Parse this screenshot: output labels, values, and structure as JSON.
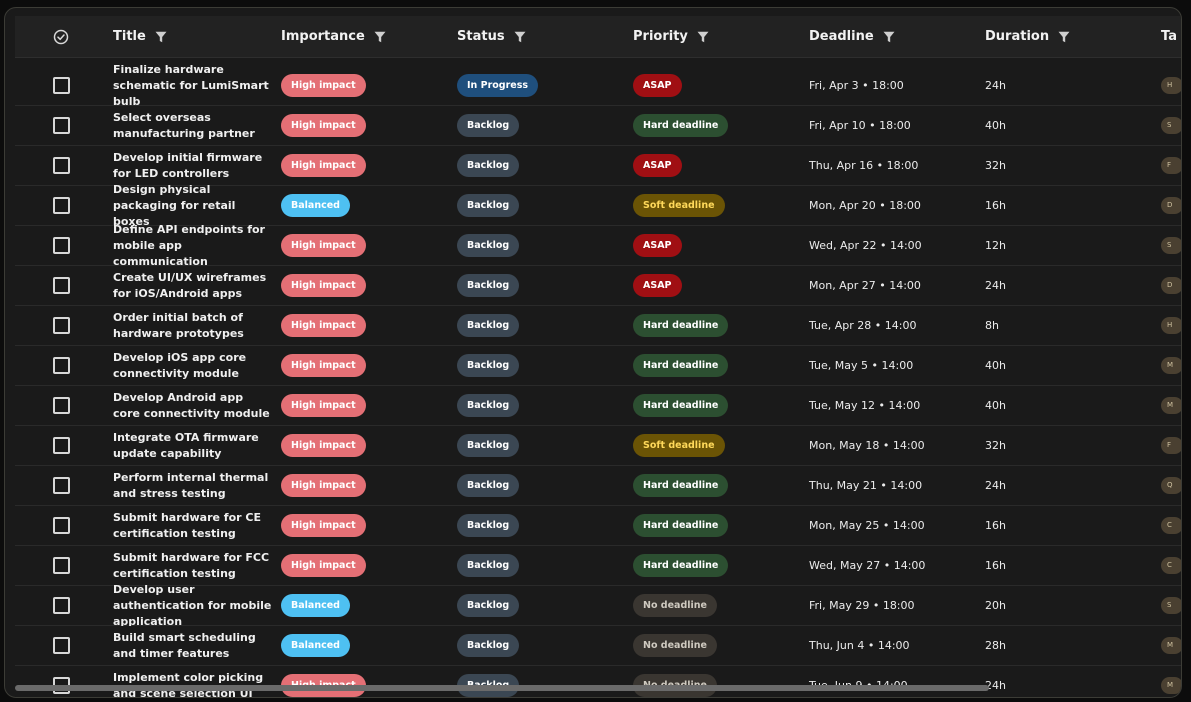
{
  "header": {
    "title": "Title",
    "importance": "Importance",
    "status": "Status",
    "priority": "Priority",
    "deadline": "Deadline",
    "duration": "Duration",
    "tags": "Ta"
  },
  "icons": {
    "select_all": "check-circle-icon",
    "filter": "filter-funnel-icon"
  },
  "colors": {
    "high_impact": "#e46f75",
    "balanced": "#4ec0f2",
    "in_progress": "#1f4f7d",
    "backlog": "#3b4753",
    "asap": "#a00f13",
    "hard_deadline": "#2c4f31",
    "soft_deadline": "#6b5405",
    "no_deadline": "#3a3631"
  },
  "rows": [
    {
      "title": "Finalize hardware schematic for LumiSmart bulb",
      "importance": "High impact",
      "status": "In Progress",
      "priority": "ASAP",
      "deadline": "Fri, Apr 3 • 18:00",
      "duration": "24h",
      "tag": "H"
    },
    {
      "title": "Select overseas manufacturing partner",
      "importance": "High impact",
      "status": "Backlog",
      "priority": "Hard deadline",
      "deadline": "Fri, Apr 10 • 18:00",
      "duration": "40h",
      "tag": "S"
    },
    {
      "title": "Develop initial firmware for LED controllers",
      "importance": "High impact",
      "status": "Backlog",
      "priority": "ASAP",
      "deadline": "Thu, Apr 16 • 18:00",
      "duration": "32h",
      "tag": "F"
    },
    {
      "title": "Design physical packaging for retail boxes",
      "importance": "Balanced",
      "status": "Backlog",
      "priority": "Soft deadline",
      "deadline": "Mon, Apr 20 • 18:00",
      "duration": "16h",
      "tag": "D"
    },
    {
      "title": "Define API endpoints for mobile app communication",
      "importance": "High impact",
      "status": "Backlog",
      "priority": "ASAP",
      "deadline": "Wed, Apr 22 • 14:00",
      "duration": "12h",
      "tag": "S"
    },
    {
      "title": "Create UI/UX wireframes for iOS/Android apps",
      "importance": "High impact",
      "status": "Backlog",
      "priority": "ASAP",
      "deadline": "Mon, Apr 27 • 14:00",
      "duration": "24h",
      "tag": "D"
    },
    {
      "title": "Order initial batch of hardware prototypes",
      "importance": "High impact",
      "status": "Backlog",
      "priority": "Hard deadline",
      "deadline": "Tue, Apr 28 • 14:00",
      "duration": "8h",
      "tag": "H"
    },
    {
      "title": "Develop iOS app core connectivity module",
      "importance": "High impact",
      "status": "Backlog",
      "priority": "Hard deadline",
      "deadline": "Tue, May 5 • 14:00",
      "duration": "40h",
      "tag": "M"
    },
    {
      "title": "Develop Android app core connectivity module",
      "importance": "High impact",
      "status": "Backlog",
      "priority": "Hard deadline",
      "deadline": "Tue, May 12 • 14:00",
      "duration": "40h",
      "tag": "M"
    },
    {
      "title": "Integrate OTA firmware update capability",
      "importance": "High impact",
      "status": "Backlog",
      "priority": "Soft deadline",
      "deadline": "Mon, May 18 • 14:00",
      "duration": "32h",
      "tag": "F"
    },
    {
      "title": "Perform internal thermal and stress testing",
      "importance": "High impact",
      "status": "Backlog",
      "priority": "Hard deadline",
      "deadline": "Thu, May 21 • 14:00",
      "duration": "24h",
      "tag": "Q"
    },
    {
      "title": "Submit hardware for CE certification testing",
      "importance": "High impact",
      "status": "Backlog",
      "priority": "Hard deadline",
      "deadline": "Mon, May 25 • 14:00",
      "duration": "16h",
      "tag": "C"
    },
    {
      "title": "Submit hardware for FCC certification testing",
      "importance": "High impact",
      "status": "Backlog",
      "priority": "Hard deadline",
      "deadline": "Wed, May 27 • 14:00",
      "duration": "16h",
      "tag": "C"
    },
    {
      "title": "Develop user authentication for mobile application",
      "importance": "Balanced",
      "status": "Backlog",
      "priority": "No deadline",
      "deadline": "Fri, May 29 • 18:00",
      "duration": "20h",
      "tag": "S"
    },
    {
      "title": "Build smart scheduling and timer features",
      "importance": "Balanced",
      "status": "Backlog",
      "priority": "No deadline",
      "deadline": "Thu, Jun 4 • 14:00",
      "duration": "28h",
      "tag": "M"
    },
    {
      "title": "Implement color picking and scene selection UI",
      "importance": "High impact",
      "status": "Backlog",
      "priority": "No deadline",
      "deadline": "Tue, Jun 9 • 14:00",
      "duration": "24h",
      "tag": "M"
    }
  ]
}
